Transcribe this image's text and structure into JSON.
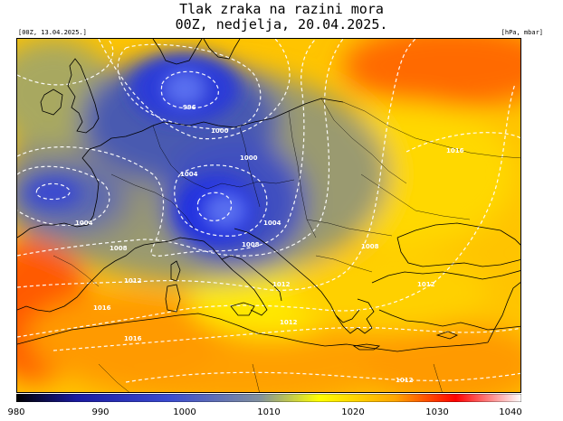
{
  "title_line1": "Tlak zraka na razini mora",
  "title_line2": "00Z, nedjelja, 20.04.2025.",
  "run_label": "[00Z, 13.04.2025.]",
  "unit_label": "[hPa, mbar]",
  "contour_labels": [
    "996",
    "1000",
    "1000",
    "1004",
    "1004",
    "1004",
    "1008",
    "1008",
    "1008",
    "1012",
    "1012",
    "1012",
    "1012",
    "1012",
    "1016",
    "1016",
    "1016"
  ],
  "colorbar": {
    "ticks": [
      "980",
      "990",
      "1000",
      "1010",
      "1020",
      "1030",
      "1040"
    ],
    "colors": [
      "#000000",
      "#1a1aa0",
      "#3a4ad0",
      "#7f8fa0",
      "#ffff00",
      "#ffa500",
      "#ff0000",
      "#ffffff"
    ]
  }
}
